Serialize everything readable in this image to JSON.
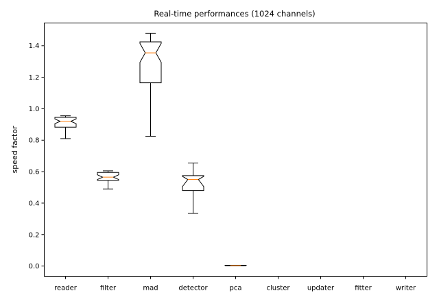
{
  "chart_data": {
    "type": "box",
    "title": "Real-time performances (1024 channels)",
    "xlabel": "",
    "ylabel": "speed factor",
    "ylim": [
      -0.065,
      1.545
    ],
    "yticks": [
      "0.0",
      "0.2",
      "0.4",
      "0.6",
      "0.8",
      "1.0",
      "1.2",
      "1.4"
    ],
    "grid": false,
    "notched": true,
    "colors": {
      "box": "#000000",
      "median": "#ff7f0e",
      "background": "#ffffff"
    },
    "categories": [
      "reader",
      "filter",
      "mad",
      "detector",
      "pca",
      "cluster",
      "updater",
      "fitter",
      "writer"
    ],
    "boxes": [
      {
        "category": "reader",
        "whislo": 0.81,
        "q1": 0.883,
        "median": 0.92,
        "q3": 0.945,
        "whishi": 0.955,
        "notchlo": 0.905,
        "notchhi": 0.935
      },
      {
        "category": "filter",
        "whislo": 0.49,
        "q1": 0.545,
        "median": 0.565,
        "q3": 0.595,
        "whishi": 0.605,
        "notchlo": 0.55,
        "notchhi": 0.58
      },
      {
        "category": "mad",
        "whislo": 0.825,
        "q1": 1.165,
        "median": 1.355,
        "q3": 1.425,
        "whishi": 1.48,
        "notchlo": 1.295,
        "notchhi": 1.415
      },
      {
        "category": "detector",
        "whislo": 0.335,
        "q1": 0.48,
        "median": 0.55,
        "q3": 0.575,
        "whishi": 0.655,
        "notchlo": 0.505,
        "notchhi": 0.57
      },
      {
        "category": "pca",
        "whislo": 0.002,
        "q1": 0.002,
        "median": 0.003,
        "q3": 0.005,
        "whishi": 0.005,
        "notchlo": 0.002,
        "notchhi": 0.004
      },
      {
        "category": "cluster",
        "empty": true
      },
      {
        "category": "updater",
        "empty": true
      },
      {
        "category": "fitter",
        "empty": true
      },
      {
        "category": "writer",
        "empty": true
      }
    ]
  }
}
